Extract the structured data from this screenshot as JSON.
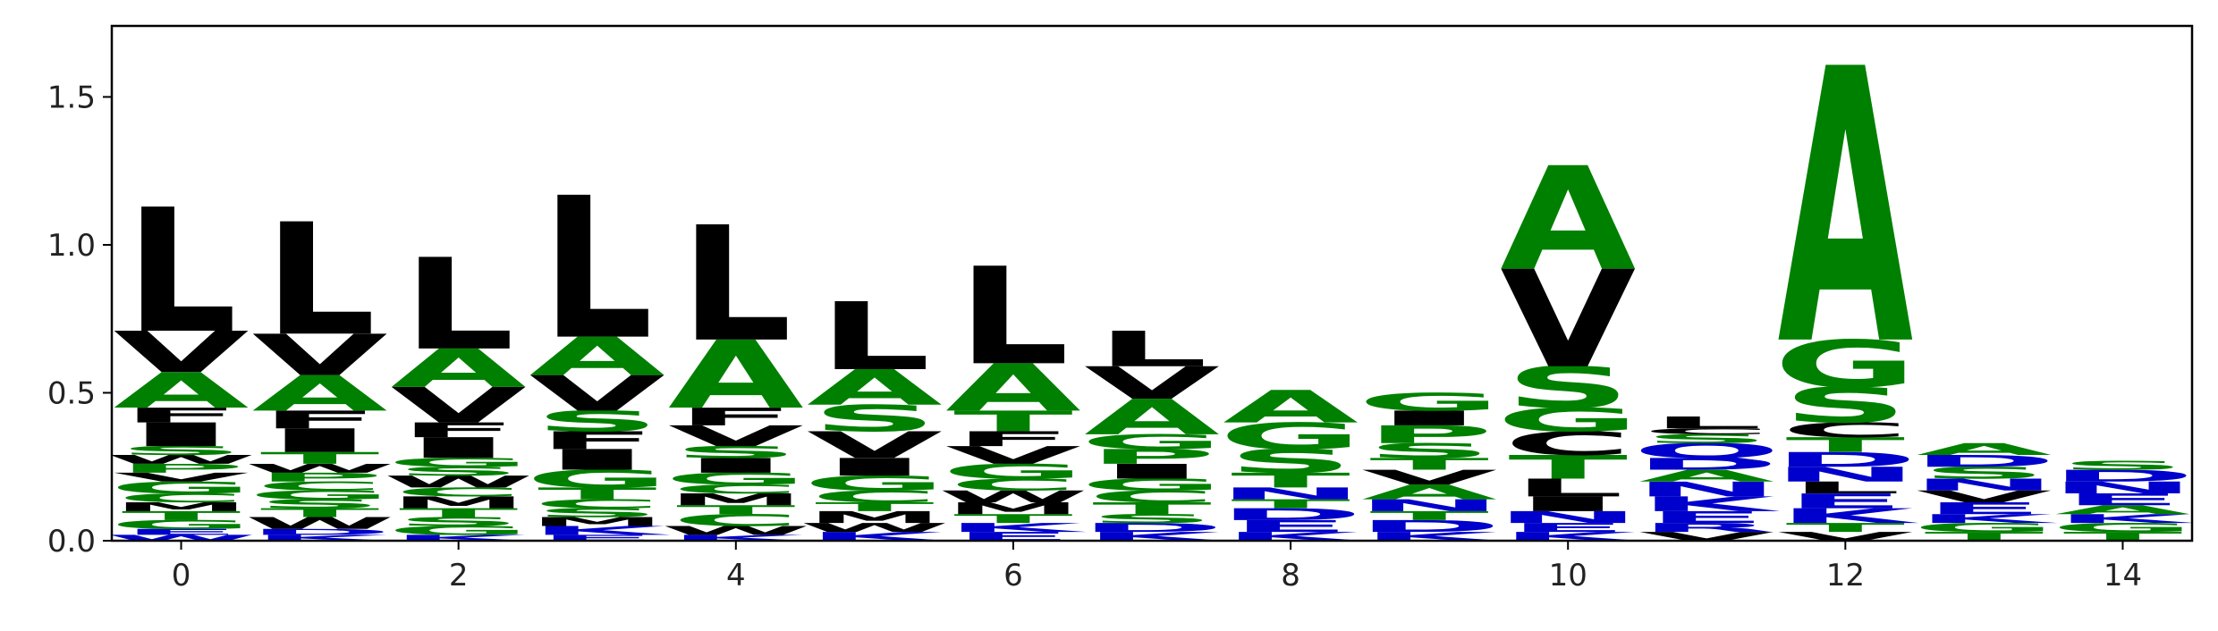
{
  "chart_data": {
    "type": "sequence-logo",
    "title": "",
    "xlabel": "",
    "ylabel": "",
    "xlim": [
      -0.5,
      14.5
    ],
    "ylim": [
      0,
      1.74
    ],
    "x_ticks": [
      0,
      2,
      4,
      6,
      8,
      10,
      12,
      14
    ],
    "y_ticks": [
      0.0,
      0.5,
      1.0,
      1.5
    ],
    "x_tick_labels": [
      "0",
      "2",
      "4",
      "6",
      "8",
      "10",
      "12",
      "14"
    ],
    "y_tick_labels": [
      "0.0",
      "0.5",
      "1.0",
      "1.5"
    ],
    "grid": false,
    "colors": {
      "hydrophobic": "#000000",
      "small_polar": "#008000",
      "other": "#0000cc"
    },
    "positions": [
      {
        "x": 0,
        "stack": [
          [
            "W",
            0.02,
            "#0000cc"
          ],
          [
            "E",
            0.02,
            "#0000cc"
          ],
          [
            "G",
            0.03,
            "#008000"
          ],
          [
            "T",
            0.03,
            "#008000"
          ],
          [
            "M",
            0.03,
            "#000000"
          ],
          [
            "C",
            0.03,
            "#008000"
          ],
          [
            "G",
            0.04,
            "#008000"
          ],
          [
            "V",
            0.03,
            "#000000"
          ],
          [
            "P",
            0.03,
            "#008000"
          ],
          [
            "W",
            0.03,
            "#000000"
          ],
          [
            "S",
            0.03,
            "#008000"
          ],
          [
            "I",
            0.08,
            "#000000"
          ],
          [
            "F",
            0.05,
            "#000000"
          ],
          [
            "A",
            0.12,
            "#008000"
          ],
          [
            "V",
            0.14,
            "#000000"
          ],
          [
            "L",
            0.42,
            "#000000"
          ]
        ]
      },
      {
        "x": 1,
        "stack": [
          [
            "K",
            0.02,
            "#0000cc"
          ],
          [
            "D",
            0.02,
            "#0000cc"
          ],
          [
            "W",
            0.04,
            "#000000"
          ],
          [
            "T",
            0.03,
            "#008000"
          ],
          [
            "S",
            0.03,
            "#008000"
          ],
          [
            "G",
            0.03,
            "#008000"
          ],
          [
            "C",
            0.03,
            "#008000"
          ],
          [
            "P",
            0.03,
            "#008000"
          ],
          [
            "W",
            0.03,
            "#000000"
          ],
          [
            "T",
            0.04,
            "#008000"
          ],
          [
            "I",
            0.08,
            "#000000"
          ],
          [
            "F",
            0.06,
            "#000000"
          ],
          [
            "A",
            0.12,
            "#008000"
          ],
          [
            "V",
            0.14,
            "#000000"
          ],
          [
            "L",
            0.38,
            "#000000"
          ]
        ]
      },
      {
        "x": 2,
        "stack": [
          [
            "K",
            0.02,
            "#0000cc"
          ],
          [
            "G",
            0.03,
            "#008000"
          ],
          [
            "S",
            0.03,
            "#008000"
          ],
          [
            "T",
            0.03,
            "#008000"
          ],
          [
            "M",
            0.04,
            "#000000"
          ],
          [
            "C",
            0.03,
            "#008000"
          ],
          [
            "W",
            0.04,
            "#000000"
          ],
          [
            "S",
            0.03,
            "#008000"
          ],
          [
            "G",
            0.03,
            "#008000"
          ],
          [
            "I",
            0.07,
            "#000000"
          ],
          [
            "F",
            0.05,
            "#000000"
          ],
          [
            "V",
            0.12,
            "#000000"
          ],
          [
            "A",
            0.13,
            "#008000"
          ],
          [
            "L",
            0.31,
            "#000000"
          ]
        ]
      },
      {
        "x": 3,
        "stack": [
          [
            "E",
            0.02,
            "#0000cc"
          ],
          [
            "K",
            0.03,
            "#0000cc"
          ],
          [
            "M",
            0.03,
            "#000000"
          ],
          [
            "S",
            0.03,
            "#008000"
          ],
          [
            "C",
            0.03,
            "#008000"
          ],
          [
            "T",
            0.04,
            "#008000"
          ],
          [
            "G",
            0.06,
            "#008000"
          ],
          [
            "I",
            0.07,
            "#000000"
          ],
          [
            "F",
            0.06,
            "#000000"
          ],
          [
            "S",
            0.07,
            "#008000"
          ],
          [
            "V",
            0.12,
            "#000000"
          ],
          [
            "A",
            0.13,
            "#008000"
          ],
          [
            "L",
            0.48,
            "#000000"
          ]
        ]
      },
      {
        "x": 4,
        "stack": [
          [
            "K",
            0.02,
            "#0000cc"
          ],
          [
            "W",
            0.03,
            "#000000"
          ],
          [
            "C",
            0.04,
            "#008000"
          ],
          [
            "T",
            0.03,
            "#008000"
          ],
          [
            "M",
            0.04,
            "#000000"
          ],
          [
            "C",
            0.03,
            "#008000"
          ],
          [
            "G",
            0.04,
            "#008000"
          ],
          [
            "I",
            0.05,
            "#000000"
          ],
          [
            "S",
            0.04,
            "#008000"
          ],
          [
            "V",
            0.07,
            "#000000"
          ],
          [
            "F",
            0.06,
            "#000000"
          ],
          [
            "A",
            0.23,
            "#008000"
          ],
          [
            "L",
            0.39,
            "#000000"
          ]
        ]
      },
      {
        "x": 5,
        "stack": [
          [
            "K",
            0.03,
            "#0000cc"
          ],
          [
            "W",
            0.03,
            "#000000"
          ],
          [
            "M",
            0.04,
            "#000000"
          ],
          [
            "T",
            0.03,
            "#008000"
          ],
          [
            "C",
            0.04,
            "#008000"
          ],
          [
            "G",
            0.05,
            "#008000"
          ],
          [
            "I",
            0.06,
            "#000000"
          ],
          [
            "V",
            0.09,
            "#000000"
          ],
          [
            "S",
            0.09,
            "#008000"
          ],
          [
            "A",
            0.12,
            "#008000"
          ],
          [
            "L",
            0.23,
            "#000000"
          ]
        ]
      },
      {
        "x": 6,
        "stack": [
          [
            "E",
            0.03,
            "#0000cc"
          ],
          [
            "K",
            0.03,
            "#0000cc"
          ],
          [
            "T",
            0.03,
            "#008000"
          ],
          [
            "M",
            0.04,
            "#000000"
          ],
          [
            "W",
            0.04,
            "#000000"
          ],
          [
            "C",
            0.04,
            "#008000"
          ],
          [
            "G",
            0.05,
            "#008000"
          ],
          [
            "V",
            0.06,
            "#000000"
          ],
          [
            "F",
            0.05,
            "#000000"
          ],
          [
            "T",
            0.07,
            "#008000"
          ],
          [
            "A",
            0.16,
            "#008000"
          ],
          [
            "L",
            0.33,
            "#000000"
          ]
        ]
      },
      {
        "x": 7,
        "stack": [
          [
            "K",
            0.03,
            "#0000cc"
          ],
          [
            "D",
            0.03,
            "#0000cc"
          ],
          [
            "S",
            0.03,
            "#008000"
          ],
          [
            "T",
            0.04,
            "#008000"
          ],
          [
            "C",
            0.04,
            "#008000"
          ],
          [
            "G",
            0.04,
            "#008000"
          ],
          [
            "I",
            0.05,
            "#000000"
          ],
          [
            "P",
            0.05,
            "#008000"
          ],
          [
            "G",
            0.05,
            "#008000"
          ],
          [
            "A",
            0.12,
            "#008000"
          ],
          [
            "V",
            0.11,
            "#000000"
          ],
          [
            "L",
            0.12,
            "#000000"
          ]
        ]
      },
      {
        "x": 8,
        "stack": [
          [
            "K",
            0.03,
            "#0000cc"
          ],
          [
            "E",
            0.04,
            "#0000cc"
          ],
          [
            "D",
            0.04,
            "#0000cc"
          ],
          [
            "T",
            0.03,
            "#008000"
          ],
          [
            "N",
            0.04,
            "#0000cc"
          ],
          [
            "T",
            0.05,
            "#008000"
          ],
          [
            "S",
            0.08,
            "#008000"
          ],
          [
            "G",
            0.09,
            "#008000"
          ],
          [
            "A",
            0.11,
            "#008000"
          ]
        ]
      },
      {
        "x": 9,
        "stack": [
          [
            "K",
            0.03,
            "#0000cc"
          ],
          [
            "D",
            0.04,
            "#0000cc"
          ],
          [
            "T",
            0.03,
            "#008000"
          ],
          [
            "N",
            0.04,
            "#0000cc"
          ],
          [
            "A",
            0.05,
            "#008000"
          ],
          [
            "V",
            0.05,
            "#000000"
          ],
          [
            "T",
            0.04,
            "#008000"
          ],
          [
            "S",
            0.05,
            "#008000"
          ],
          [
            "P",
            0.06,
            "#008000"
          ],
          [
            "I",
            0.05,
            "#000000"
          ],
          [
            "G",
            0.06,
            "#008000"
          ]
        ]
      },
      {
        "x": 10,
        "stack": [
          [
            "K",
            0.03,
            "#0000cc"
          ],
          [
            "E",
            0.03,
            "#0000cc"
          ],
          [
            "N",
            0.04,
            "#0000cc"
          ],
          [
            "I",
            0.05,
            "#000000"
          ],
          [
            "L",
            0.06,
            "#000000"
          ],
          [
            "T",
            0.08,
            "#008000"
          ],
          [
            "C",
            0.08,
            "#000000"
          ],
          [
            "G",
            0.08,
            "#008000"
          ],
          [
            "S",
            0.14,
            "#008000"
          ],
          [
            "V",
            0.33,
            "#000000"
          ],
          [
            "A",
            0.35,
            "#008000"
          ]
        ]
      },
      {
        "x": 11,
        "stack": [
          [
            "V",
            0.03,
            "#000000"
          ],
          [
            "R",
            0.03,
            "#0000cc"
          ],
          [
            "E",
            0.04,
            "#0000cc"
          ],
          [
            "K",
            0.05,
            "#0000cc"
          ],
          [
            "N",
            0.05,
            "#0000cc"
          ],
          [
            "A",
            0.04,
            "#008000"
          ],
          [
            "D",
            0.04,
            "#0000cc"
          ],
          [
            "Q",
            0.05,
            "#0000cc"
          ],
          [
            "S",
            0.03,
            "#008000"
          ],
          [
            "C",
            0.02,
            "#000000"
          ],
          [
            "L",
            0.04,
            "#000000"
          ]
        ]
      },
      {
        "x": 12,
        "stack": [
          [
            "V",
            0.03,
            "#000000"
          ],
          [
            "T",
            0.03,
            "#008000"
          ],
          [
            "K",
            0.05,
            "#0000cc"
          ],
          [
            "E",
            0.05,
            "#0000cc"
          ],
          [
            "L",
            0.04,
            "#000000"
          ],
          [
            "N",
            0.05,
            "#0000cc"
          ],
          [
            "D",
            0.05,
            "#0000cc"
          ],
          [
            "T",
            0.05,
            "#008000"
          ],
          [
            "C",
            0.05,
            "#000000"
          ],
          [
            "S",
            0.12,
            "#008000"
          ],
          [
            "G",
            0.16,
            "#008000"
          ],
          [
            "A",
            0.93,
            "#008000"
          ]
        ]
      },
      {
        "x": 13,
        "stack": [
          [
            "T",
            0.03,
            "#008000"
          ],
          [
            "G",
            0.03,
            "#008000"
          ],
          [
            "K",
            0.03,
            "#0000cc"
          ],
          [
            "E",
            0.04,
            "#0000cc"
          ],
          [
            "V",
            0.04,
            "#000000"
          ],
          [
            "N",
            0.04,
            "#0000cc"
          ],
          [
            "S",
            0.04,
            "#008000"
          ],
          [
            "D",
            0.04,
            "#0000cc"
          ],
          [
            "A",
            0.04,
            "#008000"
          ]
        ]
      },
      {
        "x": 14,
        "stack": [
          [
            "T",
            0.03,
            "#008000"
          ],
          [
            "G",
            0.03,
            "#008000"
          ],
          [
            "K",
            0.03,
            "#0000cc"
          ],
          [
            "A",
            0.03,
            "#008000"
          ],
          [
            "E",
            0.04,
            "#0000cc"
          ],
          [
            "N",
            0.04,
            "#0000cc"
          ],
          [
            "D",
            0.04,
            "#0000cc"
          ],
          [
            "S",
            0.03,
            "#008000"
          ]
        ]
      }
    ]
  }
}
